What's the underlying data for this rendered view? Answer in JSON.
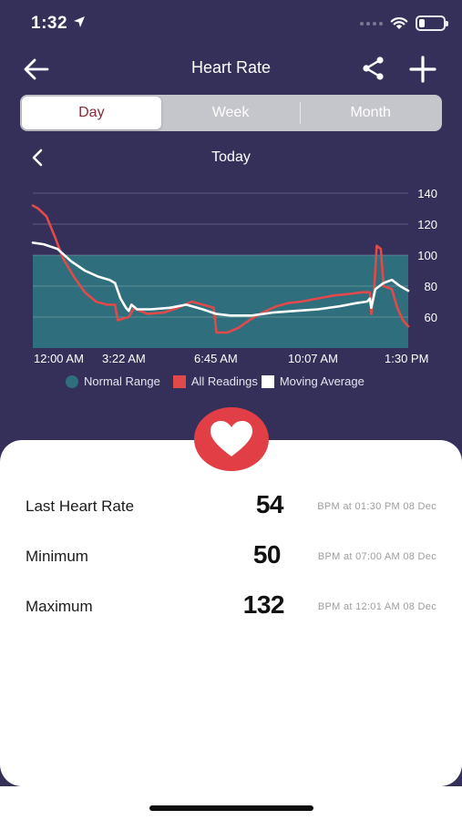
{
  "status": {
    "time": "1:32"
  },
  "nav": {
    "title": "Heart Rate"
  },
  "tabs": [
    {
      "label": "Day",
      "active": true
    },
    {
      "label": "Week",
      "active": false
    },
    {
      "label": "Month",
      "active": false
    }
  ],
  "period": {
    "label": "Today"
  },
  "colors": {
    "background": "#34305a",
    "normal_range": "#2f6e7c",
    "readings": "#e04a4a",
    "average": "#ffffff",
    "accent": "#e23e45"
  },
  "chart_data": {
    "type": "line",
    "x_ticks": [
      "12:00 AM",
      "3:22 AM",
      "6:45 AM",
      "10:07 AM",
      "1:30 PM"
    ],
    "y_ticks": [
      60,
      80,
      100,
      120,
      140
    ],
    "ylim": [
      40,
      140
    ],
    "normal_range": [
      40,
      100
    ],
    "series": [
      {
        "name": "All Readings",
        "color": "#e04a4a",
        "points": [
          [
            0,
            132
          ],
          [
            0.2,
            130
          ],
          [
            0.5,
            125
          ],
          [
            0.8,
            112
          ],
          [
            1.1,
            98
          ],
          [
            1.5,
            86
          ],
          [
            1.9,
            76
          ],
          [
            2.3,
            70
          ],
          [
            2.7,
            68
          ],
          [
            3.0,
            68
          ],
          [
            3.1,
            58
          ],
          [
            3.5,
            60
          ],
          [
            3.7,
            66
          ],
          [
            3.9,
            64
          ],
          [
            4.2,
            62
          ],
          [
            4.8,
            63
          ],
          [
            5.3,
            66
          ],
          [
            5.8,
            70
          ],
          [
            6.2,
            68
          ],
          [
            6.6,
            66
          ],
          [
            6.7,
            50
          ],
          [
            7.1,
            50
          ],
          [
            7.5,
            53
          ],
          [
            7.9,
            58
          ],
          [
            8.4,
            63
          ],
          [
            8.9,
            67
          ],
          [
            9.3,
            69
          ],
          [
            9.8,
            70
          ],
          [
            10.4,
            72
          ],
          [
            11.0,
            74
          ],
          [
            11.6,
            75
          ],
          [
            12.0,
            76
          ],
          [
            12.3,
            76
          ],
          [
            12.35,
            62
          ],
          [
            12.45,
            76
          ],
          [
            12.55,
            106
          ],
          [
            12.7,
            104
          ],
          [
            12.8,
            80
          ],
          [
            13.1,
            78
          ],
          [
            13.3,
            66
          ],
          [
            13.5,
            58
          ],
          [
            13.7,
            54
          ]
        ]
      },
      {
        "name": "Moving Average",
        "color": "#ffffff",
        "points": [
          [
            0,
            108
          ],
          [
            0.4,
            107
          ],
          [
            0.9,
            104
          ],
          [
            1.4,
            96
          ],
          [
            1.9,
            90
          ],
          [
            2.4,
            86
          ],
          [
            2.8,
            84
          ],
          [
            3.0,
            82
          ],
          [
            3.2,
            72
          ],
          [
            3.4,
            66
          ],
          [
            3.5,
            64
          ],
          [
            3.6,
            68
          ],
          [
            3.8,
            65
          ],
          [
            4.3,
            65
          ],
          [
            5.0,
            66
          ],
          [
            5.6,
            68
          ],
          [
            6.2,
            65
          ],
          [
            6.7,
            62
          ],
          [
            7.2,
            61
          ],
          [
            8.0,
            61
          ],
          [
            8.8,
            63
          ],
          [
            9.6,
            64
          ],
          [
            10.4,
            65
          ],
          [
            11.2,
            67
          ],
          [
            11.8,
            69
          ],
          [
            12.2,
            70
          ],
          [
            12.3,
            72
          ],
          [
            12.35,
            66
          ],
          [
            12.5,
            78
          ],
          [
            12.8,
            82
          ],
          [
            13.1,
            84
          ],
          [
            13.4,
            80
          ],
          [
            13.7,
            77
          ]
        ]
      }
    ],
    "legend": [
      "Normal Range",
      "All Readings",
      "Moving Average"
    ]
  },
  "stats": [
    {
      "label": "Last Heart Rate",
      "value": "54",
      "detail": "BPM at 01:30 PM 08 Dec"
    },
    {
      "label": "Minimum",
      "value": "50",
      "detail": "BPM at 07:00 AM 08 Dec"
    },
    {
      "label": "Maximum",
      "value": "132",
      "detail": "BPM at 12:01 AM 08 Dec"
    }
  ]
}
